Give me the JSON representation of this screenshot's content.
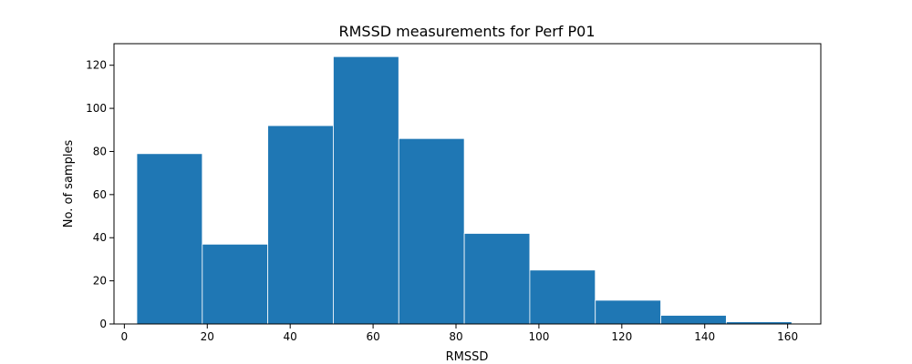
{
  "chart_data": {
    "type": "histogram",
    "title": "RMSSD measurements for Perf P01",
    "xlabel": "RMSSD",
    "ylabel": "No. of samples",
    "xlim": [
      -2.5,
      168
    ],
    "ylim": [
      0,
      130
    ],
    "xticks": [
      0,
      20,
      40,
      60,
      80,
      100,
      120,
      140,
      160
    ],
    "yticks": [
      0,
      20,
      40,
      60,
      80,
      100,
      120
    ],
    "bin_edges": [
      3,
      18.8,
      34.6,
      50.4,
      66.2,
      82.0,
      97.8,
      113.6,
      129.4,
      145.2,
      161.0
    ],
    "values": [
      79,
      37,
      92,
      124,
      86,
      42,
      25,
      11,
      4,
      1
    ],
    "bar_color": "#1f77b4",
    "grid": false,
    "legend": "none"
  }
}
